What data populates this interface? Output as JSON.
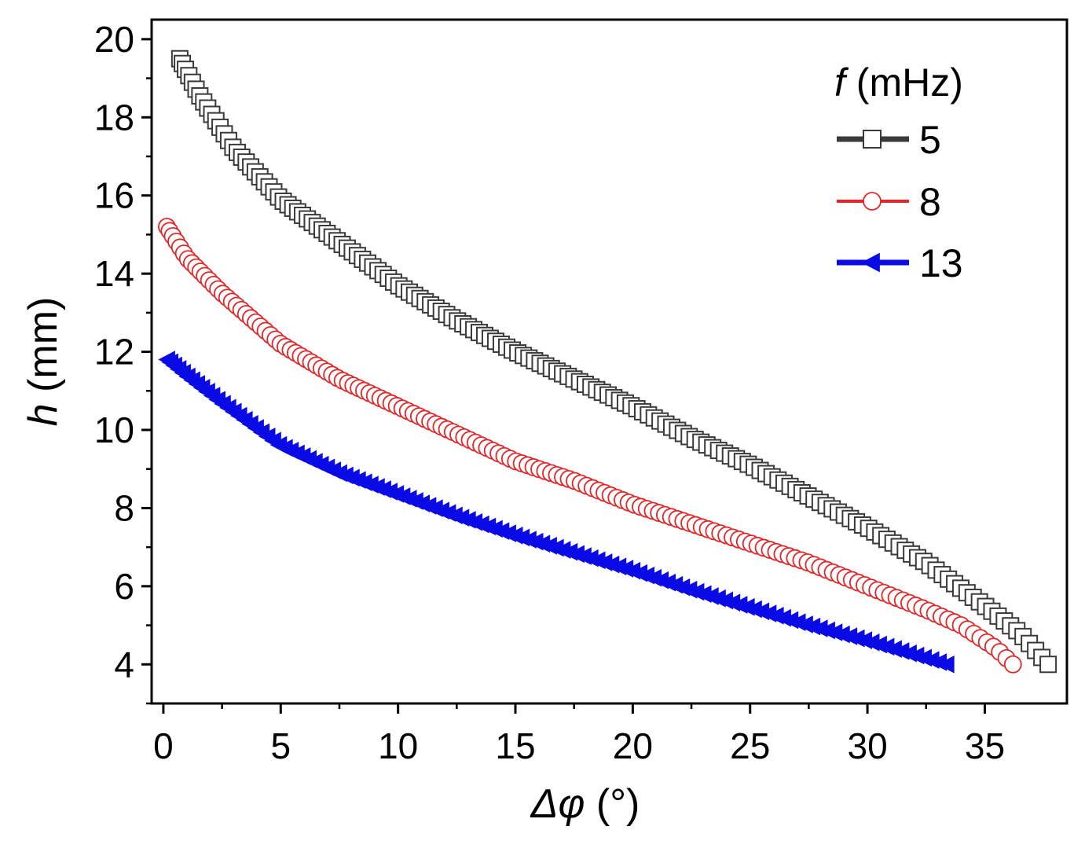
{
  "chart_data": {
    "type": "scatter",
    "xlabel_symbol": "Δφ",
    "xlabel_unit": " (°)",
    "ylabel_symbol": "h",
    "ylabel_unit": " (mm)",
    "xlim": [
      -0.5,
      38.5
    ],
    "ylim": [
      3,
      20.5
    ],
    "xticks": [
      0,
      5,
      10,
      15,
      20,
      25,
      30,
      35
    ],
    "yticks": [
      4,
      6,
      8,
      10,
      12,
      14,
      16,
      18,
      20
    ],
    "legend_title_symbol": "f",
    "legend_title_unit": " (mHz)",
    "legend_position": "top-right",
    "series": [
      {
        "name": "5",
        "marker": "square-open",
        "color": "#3a3a3a",
        "x_start": 0.7,
        "x_end": 37.7,
        "n": 160,
        "control_points": [
          [
            0.7,
            19.5
          ],
          [
            1.5,
            18.6
          ],
          [
            3,
            17.2
          ],
          [
            5,
            15.9
          ],
          [
            7.5,
            14.8
          ],
          [
            10,
            13.7
          ],
          [
            12.5,
            12.8
          ],
          [
            15,
            12.0
          ],
          [
            17.5,
            11.3
          ],
          [
            20,
            10.6
          ],
          [
            22.5,
            9.8
          ],
          [
            25,
            9.1
          ],
          [
            27.5,
            8.3
          ],
          [
            30,
            7.5
          ],
          [
            32.5,
            6.6
          ],
          [
            35,
            5.5
          ],
          [
            36.5,
            4.8
          ],
          [
            37.7,
            4.0
          ]
        ]
      },
      {
        "name": "8",
        "marker": "circle-open",
        "color": "#e0272a",
        "x_start": 0.15,
        "x_end": 36.2,
        "n": 150,
        "control_points": [
          [
            0.15,
            15.2
          ],
          [
            1,
            14.4
          ],
          [
            2.5,
            13.5
          ],
          [
            5,
            12.2
          ],
          [
            7.5,
            11.3
          ],
          [
            10,
            10.6
          ],
          [
            12.5,
            9.9
          ],
          [
            15,
            9.2
          ],
          [
            17.5,
            8.7
          ],
          [
            20,
            8.1
          ],
          [
            22.5,
            7.6
          ],
          [
            25,
            7.1
          ],
          [
            27.5,
            6.6
          ],
          [
            30,
            6.0
          ],
          [
            32.5,
            5.4
          ],
          [
            34,
            5.0
          ],
          [
            35.5,
            4.4
          ],
          [
            36.2,
            4.0
          ]
        ]
      },
      {
        "name": "13",
        "marker": "triangle-left-filled",
        "color": "#0a0ae6",
        "x_start": 0.2,
        "x_end": 33.4,
        "n": 120,
        "control_points": [
          [
            0.2,
            11.8
          ],
          [
            1,
            11.4
          ],
          [
            2.5,
            10.7
          ],
          [
            5,
            9.6
          ],
          [
            7.5,
            8.9
          ],
          [
            10,
            8.35
          ],
          [
            12.5,
            7.8
          ],
          [
            15,
            7.3
          ],
          [
            17.5,
            6.85
          ],
          [
            20,
            6.4
          ],
          [
            22.5,
            5.9
          ],
          [
            25,
            5.45
          ],
          [
            27.5,
            5.0
          ],
          [
            30,
            4.6
          ],
          [
            33.4,
            4.0
          ]
        ]
      }
    ]
  }
}
